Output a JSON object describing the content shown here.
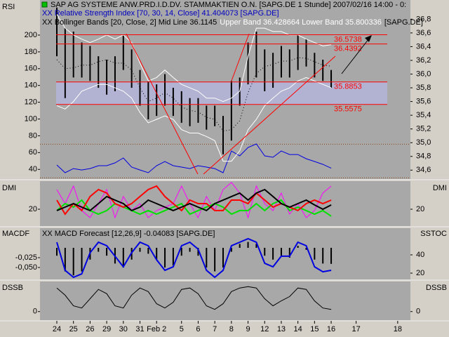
{
  "chart_data": [
    {
      "type": "line",
      "title": "SAP AG SYSTEME ANW.PRD.I.D.DV. STAMMAKTIEN O.N. [SAPG.DE  1 Stunde] 2007/02/16 14:00 - 0:",
      "subtitle": "XX Relative Strength Index [70, 30, 14, Close] 41.404073 [SAPG.DE]",
      "bollinger_text": "XX Bollinger Bands [20, Close, 2] Mid Line 36.1145",
      "bollinger_bands_text": "Upper Band 36.428664 Lower Band 35.800336",
      "bollinger_symbol_text": "[SAPG.DE]",
      "y_label": "RSI",
      "categories": [
        "24",
        null,
        "25",
        null,
        "26",
        null,
        "29",
        null,
        "30",
        null,
        "31",
        null,
        "Feb 2",
        null,
        null,
        "5",
        null,
        "6",
        null,
        "7",
        null,
        "8",
        null,
        "9",
        null,
        "12",
        null,
        "13",
        null,
        "14",
        null,
        "15",
        null,
        "16",
        null,
        null,
        "17",
        null,
        null,
        null,
        null,
        "18"
      ],
      "ylim": [
        28.5,
        241.8
      ],
      "yticks": [
        200,
        180,
        160,
        140,
        120,
        100,
        80,
        60,
        40
      ],
      "y2lim": [
        34.47,
        37.08
      ],
      "y2ticks": [
        {
          "value": 36.8,
          "label": "36,8"
        },
        {
          "value": 36.6,
          "label": "36,6"
        },
        {
          "value": 36.4,
          "label": "36,4"
        },
        {
          "value": 36.2,
          "label": "36,2"
        },
        {
          "value": 36.0,
          "label": "36,0"
        },
        {
          "value": 35.8,
          "label": "35,8"
        },
        {
          "value": 35.6,
          "label": "35,6"
        },
        {
          "value": 35.4,
          "label": "35,4"
        },
        {
          "value": 35.2,
          "label": "35,2"
        },
        {
          "value": 35.0,
          "label": "35,0"
        },
        {
          "value": 34.8,
          "label": "34,8"
        },
        {
          "value": 34.6,
          "label": "34,6"
        }
      ],
      "price_color": "#000000",
      "high": [
        36.97,
        36.67,
        36.62,
        36.46,
        36.41,
        36.26,
        36.21,
        36.26,
        36.57,
        36.36,
        36.06,
        35.9,
        35.85,
        36.0,
        35.8,
        35.75,
        35.65,
        35.65,
        35.54,
        35.54,
        35.39,
        35.9,
        35.95,
        36.46,
        36.62,
        36.36,
        36.31,
        36.41,
        36.36,
        36.57,
        36.51,
        36.31,
        36.21,
        36.06,
        null,
        null,
        null,
        null,
        null,
        null,
        null,
        null
      ],
      "low": [
        36.26,
        35.65,
        35.95,
        35.95,
        35.9,
        35.8,
        35.7,
        35.75,
        36.06,
        35.8,
        35.54,
        35.34,
        35.39,
        35.54,
        35.39,
        35.29,
        35.24,
        35.29,
        35.19,
        35.24,
        34.83,
        35.03,
        35.54,
        35.85,
        35.95,
        35.75,
        35.8,
        35.95,
        35.95,
        36.06,
        36.11,
        35.95,
        35.9,
        35.8,
        null,
        null,
        null,
        null,
        null,
        null,
        null,
        null
      ],
      "levels": [
        36.5738,
        36.4392,
        35.8853,
        35.5575
      ],
      "level_color": "#ff0000",
      "band_color": "#b4b4dc",
      "rsi_levels": [
        70,
        30
      ],
      "rsi_level_color": "#8b4513",
      "series": [
        {
          "color": "#0000e0",
          "width": 1,
          "values": [
            45.2,
            36.0,
            41.0,
            39.3,
            41.0,
            44.4,
            44.4,
            47.7,
            53.6,
            42.7,
            39.3,
            36.0,
            44.4,
            49.4,
            44.4,
            42.7,
            41.0,
            44.4,
            42.7,
            41.0,
            36.0,
            61.9,
            56.1,
            66.1,
            70.3,
            56.1,
            54.4,
            61.9,
            57.7,
            57.7,
            52.7,
            49.4,
            46.0,
            41.404073,
            null,
            null,
            null,
            null,
            null,
            null,
            null,
            null
          ]
        },
        {
          "color": "#ffffff",
          "width": 1,
          "axis": "y2",
          "values": [
            36.87,
            36.67,
            36.57,
            36.51,
            36.46,
            36.51,
            36.57,
            36.51,
            36.57,
            36.46,
            36.16,
            35.9,
            35.95,
            36.06,
            35.95,
            35.85,
            35.8,
            35.75,
            35.65,
            35.65,
            35.6,
            35.65,
            35.75,
            36.26,
            36.67,
            36.67,
            36.62,
            36.62,
            36.57,
            36.57,
            36.51,
            36.46,
            36.41,
            36.428664,
            null,
            null,
            null,
            null,
            null,
            null,
            null,
            null
          ]
        },
        {
          "color": "#ffffff",
          "width": 1,
          "axis": "y2",
          "values": [
            35.54,
            35.49,
            35.6,
            35.75,
            35.8,
            35.85,
            35.85,
            35.8,
            35.75,
            35.65,
            35.44,
            35.29,
            35.34,
            35.39,
            35.34,
            35.19,
            35.14,
            35.14,
            35.09,
            35.03,
            34.73,
            34.73,
            34.88,
            35.19,
            35.34,
            35.54,
            35.65,
            35.75,
            35.8,
            35.9,
            35.95,
            35.9,
            35.85,
            35.800336,
            null,
            null,
            null,
            null,
            null,
            null,
            null,
            null
          ]
        },
        {
          "color": "#000000",
          "width": 1,
          "dash": true,
          "axis": "y2",
          "values": [
            36.21,
            36.08,
            36.09,
            36.13,
            36.13,
            36.18,
            36.21,
            36.16,
            36.16,
            36.06,
            35.8,
            35.6,
            35.65,
            35.73,
            35.65,
            35.52,
            35.47,
            35.45,
            35.37,
            35.34,
            35.17,
            35.19,
            35.32,
            35.73,
            36.01,
            36.11,
            36.14,
            36.19,
            36.19,
            36.24,
            36.23,
            36.18,
            36.13,
            36.1145,
            null,
            null,
            null,
            null,
            null,
            null,
            null,
            null
          ]
        }
      ]
    },
    {
      "type": "line",
      "y_label": "DMI",
      "y2_label": "DMI",
      "ylim": [
        5,
        45
      ],
      "yticks": [
        20
      ],
      "y2lim": [
        5,
        45
      ],
      "y2ticks": [
        20
      ],
      "series": [
        {
          "color": "#ff00ff",
          "width": 1,
          "values": [
            37.5,
            25,
            40.6,
            18.8,
            12.5,
            25,
            37.5,
            12.5,
            31.3,
            18.8,
            25,
            12.5,
            18.8,
            21.9,
            25,
            40.6,
            25,
            12.5,
            31.3,
            18.8,
            37.5,
            43.8,
            34.4,
            12.5,
            40.6,
            25,
            18.8,
            34.4,
            15.6,
            25,
            12.5,
            18.8,
            34.4,
            40.6,
            null,
            null,
            null,
            null,
            null,
            null,
            null,
            null
          ]
        },
        {
          "color": "#00e000",
          "width": 2,
          "values": [
            18.8,
            25,
            21.9,
            28.1,
            18.8,
            15.6,
            18.8,
            25,
            21.9,
            18.8,
            15.6,
            18.8,
            15.6,
            18.8,
            21.9,
            25,
            15.6,
            18.8,
            21.9,
            25,
            21.9,
            15.6,
            18.8,
            18.8,
            25,
            18.8,
            25,
            28.1,
            18.8,
            21.9,
            18.8,
            15.6,
            18.8,
            13.8,
            null,
            null,
            null,
            null,
            null,
            null,
            null,
            null
          ]
        },
        {
          "color": "#ff0000",
          "width": 2,
          "values": [
            28.1,
            15.6,
            25,
            18.8,
            31.3,
            37.5,
            34.4,
            25,
            21.9,
            25,
            31.3,
            37.5,
            40.6,
            31.3,
            25,
            18.8,
            28.1,
            25,
            25,
            18.8,
            18.8,
            28.1,
            28.1,
            25,
            34.4,
            28.1,
            21.9,
            25,
            21.9,
            18.8,
            25,
            28.1,
            25,
            28.1,
            null,
            null,
            null,
            null,
            null,
            null,
            null,
            null
          ]
        },
        {
          "color": "#000000",
          "width": 2,
          "values": [
            18.8,
            21.9,
            25,
            21.9,
            18.8,
            25,
            31.3,
            28.1,
            25,
            18.8,
            21.9,
            28.1,
            25,
            21.9,
            18.8,
            21.9,
            25,
            21.9,
            18.8,
            25,
            28.1,
            31.3,
            34.4,
            28.1,
            34.4,
            37.5,
            31.3,
            25,
            21.9,
            25,
            28.1,
            23.8,
            20,
            23.8,
            null,
            null,
            null,
            null,
            null,
            null,
            null,
            null
          ]
        }
      ]
    },
    {
      "type": "line",
      "y_label": "MACDF",
      "y2_label": "SSTOC",
      "title": "XX MACD Forecast [12,26,9] -0.04083 [SAPG.DE]",
      "ylim": [
        -0.0804,
        0.05
      ],
      "yticks": [
        {
          "value": -0.025,
          "label": "-0,025"
        },
        {
          "value": -0.05,
          "label": "-0,050"
        }
      ],
      "y2lim": [
        13.1,
        69.2
      ],
      "y2ticks": [
        40,
        20
      ],
      "histogram": {
        "color": "#000000",
        "values": [
          -0.02,
          -0.06,
          -0.07,
          -0.06,
          -0.03,
          -0.01,
          -0.02,
          -0.04,
          -0.05,
          -0.03,
          -0.01,
          -0.015,
          -0.03,
          -0.05,
          -0.045,
          -0.02,
          -0.01,
          -0.02,
          -0.05,
          -0.06,
          -0.05,
          -0.01,
          0.01,
          0.015,
          0.01,
          -0.02,
          -0.03,
          -0.02,
          -0.025,
          0.005,
          -0.005,
          -0.03,
          -0.04,
          -0.04083,
          null,
          null,
          null,
          null,
          null,
          null,
          null,
          null
        ]
      },
      "series": [
        {
          "color": "#0000e0",
          "width": 2,
          "axis": "y2",
          "values": [
            53.8,
            23.1,
            15.4,
            19.2,
            42.3,
            53.8,
            50,
            38.5,
            26.9,
            42.3,
            53.8,
            50,
            34.6,
            23.1,
            26.9,
            50,
            53.8,
            46.2,
            23.1,
            15.4,
            23.1,
            50,
            53.8,
            57.7,
            53.8,
            30.8,
            26.9,
            38.5,
            38.5,
            53.8,
            50,
            26.9,
            21.5,
            23.1,
            null,
            null,
            null,
            null,
            null,
            null,
            null,
            null
          ]
        }
      ]
    },
    {
      "type": "line",
      "y_label": "DSSB",
      "y2_label": "DSSB",
      "ylim": [
        -36.4,
        127.3
      ],
      "yticks": [
        0
      ],
      "y2lim": [
        -36.4,
        127.3
      ],
      "y2ticks": [
        0
      ],
      "series": [
        {
          "color": "#000000",
          "width": 1,
          "values": [
            100,
            69.7,
            24.2,
            15.2,
            54.5,
            93.9,
            75.8,
            24.2,
            15.2,
            69.7,
            100,
            84.8,
            33.3,
            15.2,
            39.4,
            93.9,
            100,
            75.8,
            24.2,
            9.1,
            33.3,
            84.8,
            100,
            106,
            100,
            54.5,
            24.2,
            45.5,
            63.6,
            100,
            93.9,
            45.5,
            15.2,
            9.1,
            null,
            null,
            null,
            null,
            null,
            null,
            null,
            null
          ]
        }
      ]
    }
  ]
}
